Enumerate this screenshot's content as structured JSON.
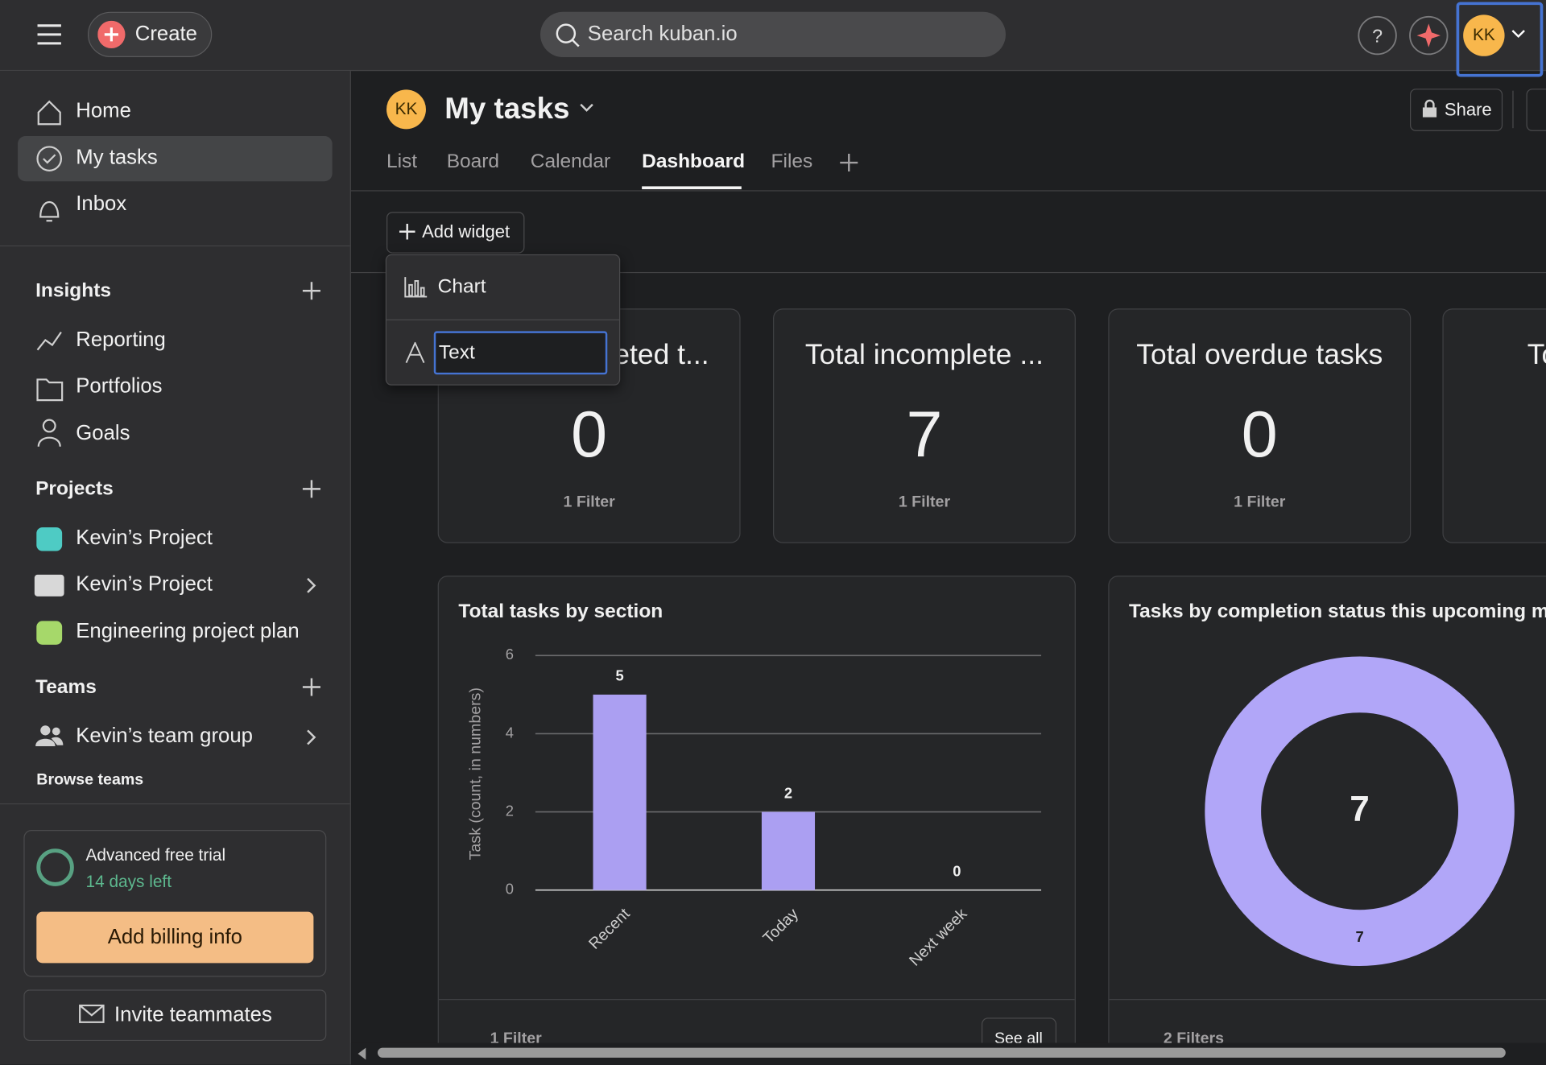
{
  "topbar": {
    "create": "Create",
    "search": "Search kuban.io",
    "avatar": "KK"
  },
  "sidebar": {
    "nav": [
      "Home",
      "My tasks",
      "Inbox"
    ],
    "insights": {
      "title": "Insights",
      "items": [
        "Reporting",
        "Portfolios",
        "Goals"
      ]
    },
    "projects": {
      "title": "Projects",
      "items": [
        "Kevin’s Project",
        "Kevin’s Project",
        "Engineering project plan"
      ]
    },
    "teams": {
      "title": "Teams",
      "items": [
        "Kevin’s team group"
      ],
      "browse": "Browse teams"
    },
    "trial": {
      "title": "Advanced free trial",
      "days": "14 days left",
      "button": "Add billing info"
    },
    "invite": "Invite teammates"
  },
  "header": {
    "avatar": "KK",
    "title": "My tasks",
    "share": "Share",
    "tabs": [
      "List",
      "Board",
      "Calendar",
      "Dashboard",
      "Files"
    ]
  },
  "toolbar": {
    "add_widget": "Add widget",
    "menu": [
      "Chart",
      "Text"
    ]
  },
  "cards": [
    {
      "title": "Total completed t...",
      "value": 0,
      "filter": "1 Filter"
    },
    {
      "title": "Total incomplete ...",
      "value": 7,
      "filter": "1 Filter"
    },
    {
      "title": "Total overdue tasks",
      "value": 0,
      "filter": "1 Filter"
    },
    {
      "title": "To"
    }
  ],
  "bar_widget": {
    "chart_data": {
      "type": "bar",
      "title": "Total tasks by section",
      "y_label": "Task (count, in numbers)",
      "categories": [
        "Recent",
        "Today",
        "Next week"
      ],
      "values": [
        5,
        2,
        0
      ],
      "color": "#ab9ff2",
      "ylim": [
        0,
        6
      ],
      "yticks": [
        0,
        2,
        4,
        6
      ],
      "grid": true
    },
    "filter": "1 Filter",
    "see_all": "See all"
  },
  "donut_widget": {
    "chart_data": {
      "type": "donut",
      "title": "Tasks by completion status this upcoming mo",
      "values": [
        7
      ],
      "color": "#b1a6f8",
      "total": 7
    },
    "filter": "2 Filters"
  }
}
